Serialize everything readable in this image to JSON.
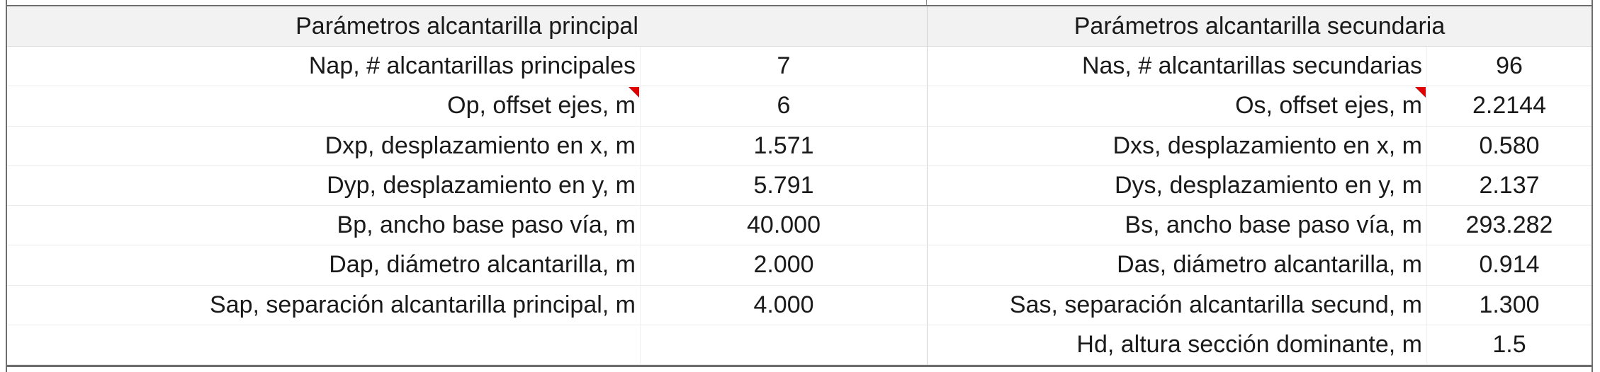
{
  "principal": {
    "header": "Parámetros alcantarilla principal",
    "rows": [
      {
        "label": "Nap, # alcantarillas principales",
        "value": "7"
      },
      {
        "label": "Op, offset ejes, m",
        "value": "6"
      },
      {
        "label": "Dxp, desplazamiento en x, m",
        "value": "1.571"
      },
      {
        "label": "Dyp, desplazamiento en y, m",
        "value": "5.791"
      },
      {
        "label": "Bp, ancho base paso vía, m",
        "value": "40.000"
      },
      {
        "label": "Dap, diámetro alcantarilla, m",
        "value": "2.000"
      },
      {
        "label": "Sap, separación alcantarilla principal, m",
        "value": "4.000"
      }
    ]
  },
  "secundaria": {
    "header": "Parámetros alcantarilla secundaria",
    "rows": [
      {
        "label": "Nas, # alcantarillas secundarias",
        "value": "96"
      },
      {
        "label": "Os, offset ejes, m",
        "value": "2.2144"
      },
      {
        "label": "Dxs, desplazamiento en x, m",
        "value": "0.580"
      },
      {
        "label": "Dys, desplazamiento en y, m",
        "value": "2.137"
      },
      {
        "label": "Bs, ancho base paso vía, m",
        "value": "293.282"
      },
      {
        "label": "Das, diámetro alcantarilla, m",
        "value": "0.914"
      },
      {
        "label": "Sas, separación alcantarilla secund, m",
        "value": "1.300"
      },
      {
        "label": "Hd, altura sección dominante, m",
        "value": "1.5"
      }
    ]
  },
  "colors": {
    "header_fill": "#f2f2f2",
    "comment_marker": "#e00000",
    "border": "#6e6e6e"
  }
}
